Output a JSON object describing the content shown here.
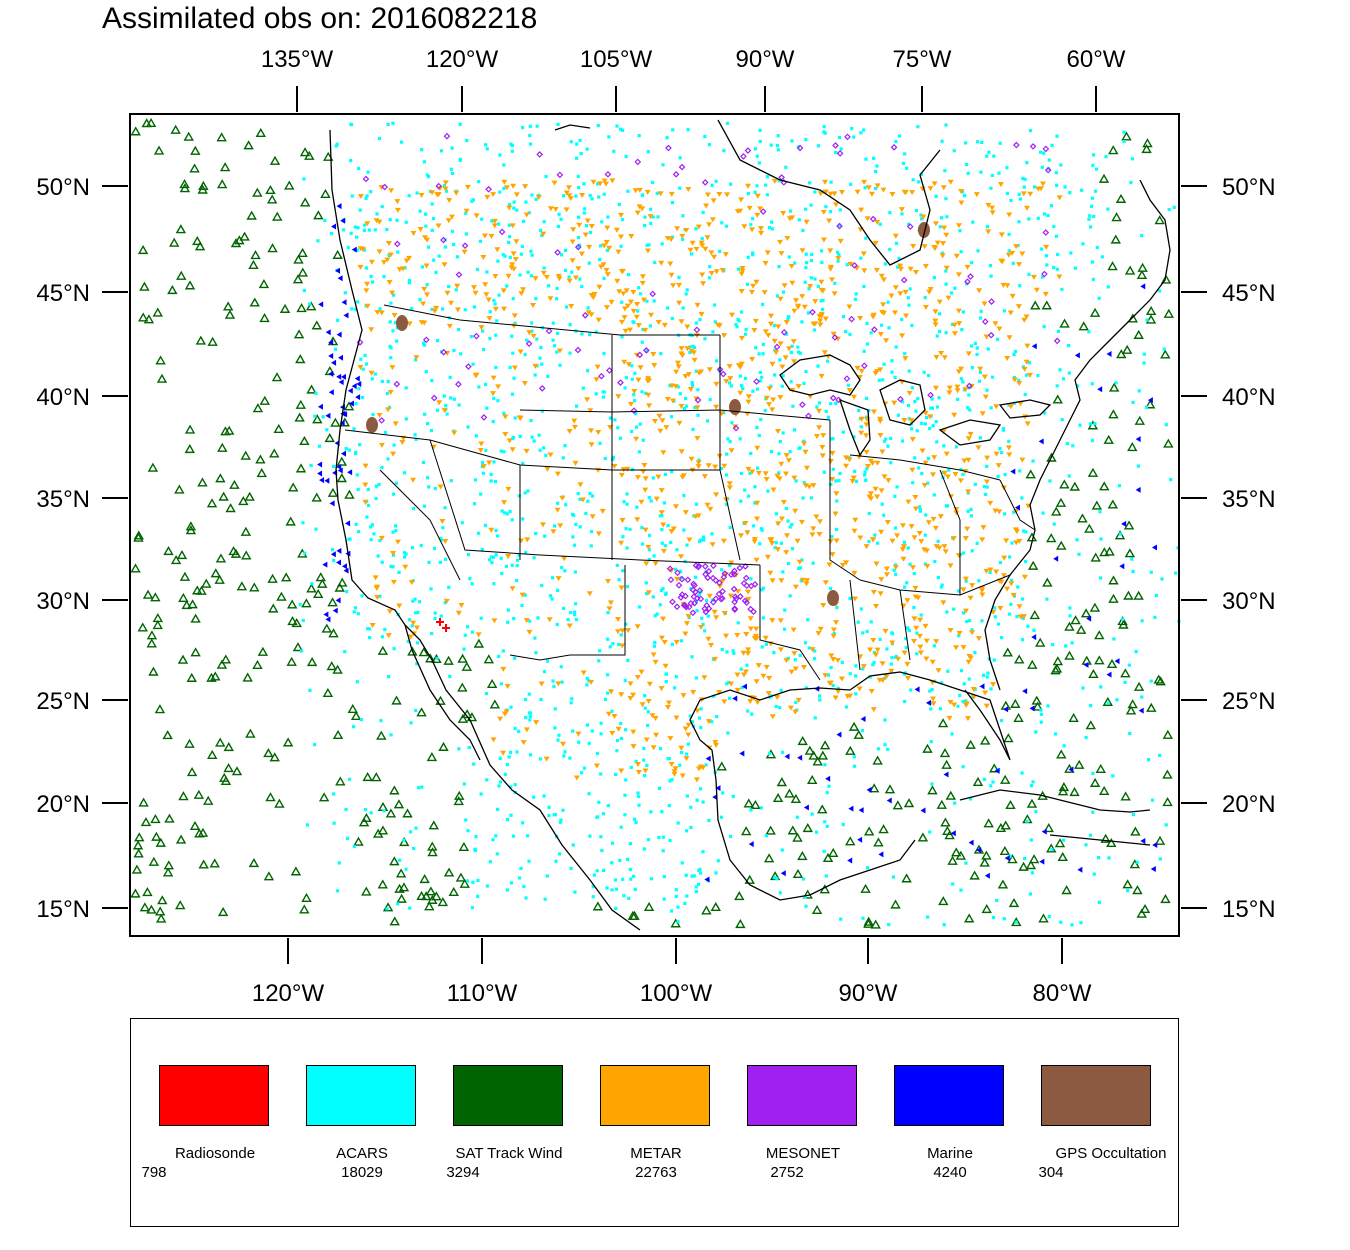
{
  "title": "Assimilated obs on: 2016082218",
  "top_axis_ticks": [
    "135°W",
    "120°W",
    "105°W",
    "90°W",
    "75°W",
    "60°W"
  ],
  "bottom_axis_ticks": [
    "120°W",
    "110°W",
    "100°W",
    "90°W",
    "80°W"
  ],
  "lat_ticks": [
    "50°N",
    "45°N",
    "40°N",
    "35°N",
    "30°N",
    "25°N",
    "20°N",
    "15°N"
  ],
  "legend": [
    {
      "name": "Radiosonde",
      "count": "798",
      "color": "#ff0000"
    },
    {
      "name": "ACARS",
      "count": "18029",
      "color": "#00ffff"
    },
    {
      "name": "SAT Track Wind",
      "count": "3294",
      "color": "#006400"
    },
    {
      "name": "METAR",
      "count": "22763",
      "color": "#ffa500"
    },
    {
      "name": "MESONET",
      "count": "2752",
      "color": "#a020f0"
    },
    {
      "name": "Marine",
      "count": "4240",
      "color": "#0000ff"
    },
    {
      "name": "GPS Occultation",
      "count": "304",
      "color": "#8b5a40"
    }
  ]
}
